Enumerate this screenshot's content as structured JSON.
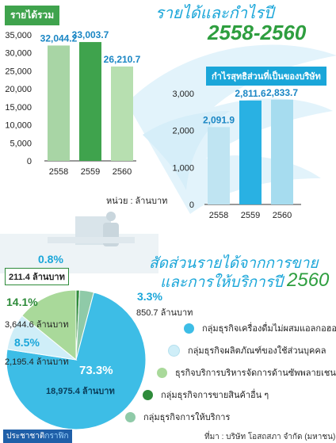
{
  "colors": {
    "light_blue_badge": "#1aa6d9",
    "green_badge": "#3fa34d",
    "footer_blue": "#1f5fa8",
    "footer_green": "#4cae50"
  },
  "header": {
    "title": "รายได้และกำไรปี",
    "year_range": "2558-2560"
  },
  "footer": {
    "brand_part1": "ประชาชาติ",
    "brand_part2": "กราฟิก",
    "source": "ที่มา : บริษัท โอสถสภา จำกัด (มหาชน)"
  },
  "chart_data": [
    {
      "type": "bar",
      "title": "รายได้รวม",
      "categories": [
        "2558",
        "2559",
        "2560"
      ],
      "values": [
        32044.2,
        33003.7,
        26210.7
      ],
      "value_labels": [
        "32,044.2",
        "33,003.7",
        "26,210.7"
      ],
      "ylim": [
        0,
        35000
      ],
      "yticks": [
        "35,000",
        "30,000",
        "25,000",
        "20,000",
        "15,000",
        "10,000",
        "5,000",
        "0"
      ],
      "unit": "หน่วย : ล้านบาท",
      "bar_colors": [
        "#a8d5a5",
        "#3fa34d",
        "#b7dfb0"
      ],
      "grid": false
    },
    {
      "type": "bar",
      "title": "กำไรสุทธิส่วนที่เป็นของบริษัท",
      "categories": [
        "2558",
        "2559",
        "2560"
      ],
      "values": [
        2091.9,
        2811.6,
        2833.7
      ],
      "value_labels": [
        "2,091.9",
        "2,811.6",
        "2,833.7"
      ],
      "ylim": [
        0,
        3000
      ],
      "yticks": [
        "3,000",
        "2,000",
        "1,000",
        "0"
      ],
      "bar_colors": [
        "#bfe4f2",
        "#29b1e3",
        "#a6dcef"
      ],
      "grid": false
    },
    {
      "type": "pie",
      "title": "สัดส่วนรายได้จากการขาย",
      "subtitle": "และการให้บริการปี",
      "year": "2560",
      "slices": [
        {
          "name": "กลุ่มธุรกิจเครื่องดื่มไม่ผสมแอลกอฮอล์",
          "percent": 73.3,
          "percent_label": "73.3%",
          "amount_label": "18,975.4 ล้านบาท",
          "color": "#3dbde6"
        },
        {
          "name": "กลุ่มธุรกิจผลิตภัณฑ์ของใช้ส่วนบุคคล",
          "percent": 8.5,
          "percent_label": "8.5%",
          "amount_label": "2,195.4 ล้านบาท",
          "color": "#cfeef8"
        },
        {
          "name": "ธุรกิจบริการบริหารจัดการด้านซัพพลายเชน",
          "percent": 14.1,
          "percent_label": "14.1%",
          "amount_label": "3,644.6 ล้านบาท",
          "color": "#a9d99a"
        },
        {
          "name": "กลุ่มธุรกิจการขายสินค้าอื่น ๆ",
          "percent": 0.8,
          "percent_label": "0.8%",
          "amount_label": "211.4 ล้านบาท",
          "color": "#2e8b3a"
        },
        {
          "name": "กลุ่มธุรกิจการให้บริการ",
          "percent": 3.3,
          "percent_label": "3.3%",
          "amount_label": "850.7 ล้านบาท",
          "color": "#8fcaa8"
        }
      ]
    }
  ]
}
